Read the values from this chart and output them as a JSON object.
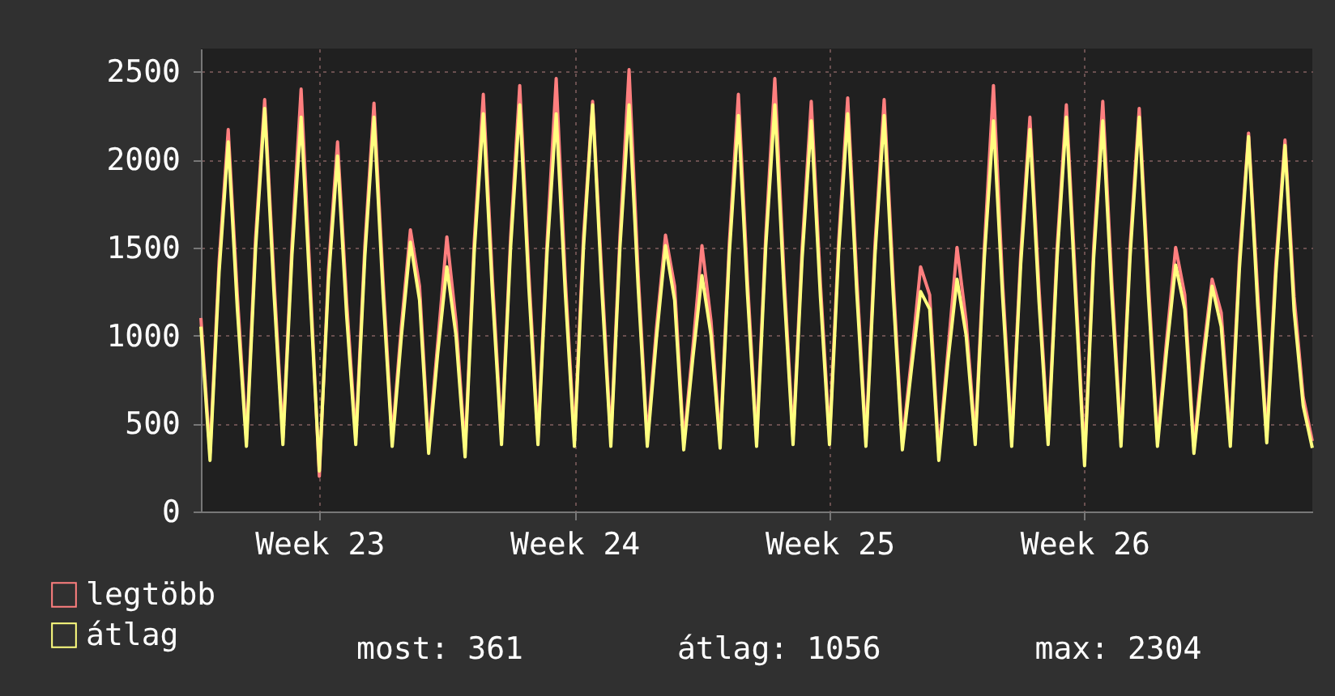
{
  "chart_data": {
    "type": "line",
    "ylim": [
      0,
      2630
    ],
    "yticks": [
      0,
      500,
      1000,
      1500,
      2000,
      2500
    ],
    "grid": true,
    "legend": "bottom left",
    "line_style": "solid",
    "annotations": [
      "most: 361",
      "átlag: 1056",
      "max: 2304"
    ],
    "categories": [
      null,
      null,
      null,
      null,
      null,
      null,
      null,
      null,
      null,
      null,
      null,
      null,
      null,
      "Week 23",
      null,
      null,
      null,
      null,
      null,
      null,
      null,
      null,
      null,
      null,
      null,
      null,
      null,
      null,
      null,
      null,
      null,
      null,
      null,
      null,
      null,
      null,
      null,
      null,
      null,
      null,
      null,
      "Week 24",
      null,
      null,
      null,
      null,
      null,
      null,
      null,
      null,
      null,
      null,
      null,
      null,
      null,
      null,
      null,
      null,
      null,
      null,
      null,
      null,
      null,
      null,
      null,
      null,
      null,
      null,
      null,
      "Week 25",
      null,
      null,
      null,
      null,
      null,
      null,
      null,
      null,
      null,
      null,
      null,
      null,
      null,
      null,
      null,
      null,
      null,
      null,
      null,
      null,
      null,
      null,
      null,
      null,
      null,
      null,
      null,
      "Week 26",
      null,
      null,
      null,
      null,
      null,
      null,
      null,
      null,
      null,
      null,
      null,
      null,
      null,
      null,
      null,
      null,
      null,
      null,
      null,
      null,
      null,
      null,
      null,
      null,
      null
    ],
    "series": [
      {
        "name": "legtöbb",
        "color": "#ff7f7f",
        "values": [
          1100,
          330,
          1420,
          2170,
          1230,
          410,
          1550,
          2340,
          1340,
          420,
          1520,
          2400,
          1310,
          200,
          1370,
          2100,
          1190,
          420,
          1510,
          2320,
          1310,
          410,
          1050,
          1600,
          1280,
          370,
          960,
          1560,
          1080,
          350,
          1530,
          2370,
          1320,
          420,
          1560,
          2420,
          1350,
          420,
          1530,
          2460,
          1320,
          410,
          1560,
          2330,
          1350,
          410,
          1560,
          2510,
          1350,
          410,
          1040,
          1570,
          1280,
          390,
          930,
          1510,
          1080,
          400,
          1520,
          2370,
          1310,
          410,
          1560,
          2460,
          1350,
          420,
          1500,
          2330,
          1300,
          420,
          1530,
          2350,
          1320,
          410,
          1520,
          2340,
          1310,
          390,
          870,
          1390,
          1230,
          330,
          910,
          1500,
          1080,
          420,
          1500,
          2420,
          1300,
          410,
          1470,
          2240,
          1270,
          420,
          1510,
          2310,
          1310,
          300,
          1500,
          2330,
          1300,
          410,
          1510,
          2290,
          1310,
          410,
          970,
          1500,
          1230,
          370,
          890,
          1320,
          1130,
          410,
          1440,
          2150,
          1250,
          430,
          1410,
          2110,
          1220,
          650,
          400
        ]
      },
      {
        "name": "átlag",
        "color": "#ffff7f",
        "values": [
          1050,
          290,
          1360,
          2100,
          1150,
          370,
          1490,
          2290,
          1260,
          380,
          1460,
          2240,
          1230,
          230,
          1310,
          2020,
          1110,
          380,
          1450,
          2240,
          1230,
          370,
          990,
          1530,
          1200,
          330,
          900,
          1390,
          1000,
          310,
          1470,
          2260,
          1240,
          380,
          1500,
          2310,
          1270,
          380,
          1470,
          2260,
          1240,
          370,
          1500,
          2310,
          1270,
          370,
          1500,
          2310,
          1270,
          370,
          980,
          1510,
          1200,
          350,
          870,
          1340,
          1000,
          360,
          1460,
          2250,
          1230,
          370,
          1500,
          2310,
          1270,
          380,
          1440,
          2220,
          1220,
          380,
          1470,
          2260,
          1240,
          370,
          1460,
          2250,
          1230,
          350,
          810,
          1250,
          1150,
          290,
          850,
          1320,
          1000,
          380,
          1440,
          2220,
          1220,
          370,
          1410,
          2170,
          1190,
          380,
          1450,
          2240,
          1230,
          260,
          1440,
          2220,
          1220,
          370,
          1450,
          2240,
          1230,
          370,
          910,
          1400,
          1150,
          330,
          830,
          1280,
          1050,
          370,
          1380,
          2130,
          1170,
          390,
          1350,
          2080,
          1140,
          600,
          361
        ]
      }
    ]
  }
}
